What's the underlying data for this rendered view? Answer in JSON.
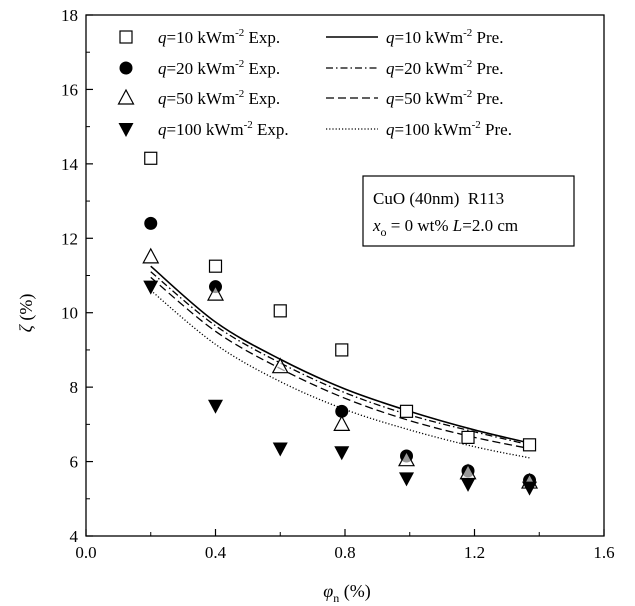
{
  "chart_data": {
    "type": "scatter",
    "xlabel": "φn (%)",
    "ylabel": "ζ (%)",
    "xlim": [
      0.0,
      1.6
    ],
    "ylim": [
      4,
      18
    ],
    "xticks": [
      "0.0",
      "0.4",
      "0.8",
      "1.2",
      "1.6"
    ],
    "yticks": [
      "4",
      "6",
      "8",
      "10",
      "12",
      "14",
      "16",
      "18"
    ],
    "grid": false,
    "legend_position": "top",
    "annotation": {
      "line1": "CuO (40nm)  R113",
      "line2": "xo = 0 wt%  L=2.0 cm"
    },
    "series": [
      {
        "name": "q=10 kWm-2 Exp.",
        "kind": "points",
        "marker": "open-square",
        "x": [
          0.2,
          0.4,
          0.6,
          0.79,
          0.99,
          1.18,
          1.37
        ],
        "y": [
          14.15,
          11.25,
          10.05,
          9.0,
          7.35,
          6.65,
          6.45
        ]
      },
      {
        "name": "q=20 kWm-2 Exp.",
        "kind": "points",
        "marker": "filled-circle",
        "x": [
          0.2,
          0.4,
          0.79,
          0.99,
          1.18,
          1.37
        ],
        "y": [
          12.4,
          10.7,
          7.35,
          6.15,
          5.75,
          5.5
        ]
      },
      {
        "name": "q=50 kWm-2 Exp.",
        "kind": "points",
        "marker": "open-triangle-up",
        "x": [
          0.2,
          0.4,
          0.6,
          0.79,
          0.99,
          1.18,
          1.37
        ],
        "y": [
          11.5,
          10.5,
          8.55,
          7.0,
          6.05,
          5.7,
          5.45
        ]
      },
      {
        "name": "q=100 kWm-2 Exp.",
        "kind": "points",
        "marker": "filled-triangle-down",
        "x": [
          0.2,
          0.4,
          0.6,
          0.79,
          0.99,
          1.18,
          1.37
        ],
        "y": [
          10.7,
          7.5,
          6.35,
          6.25,
          5.55,
          5.4,
          5.3
        ]
      },
      {
        "name": "q=10 kWm-2 Pre.",
        "kind": "line",
        "dash": "solid",
        "x": [
          0.2,
          0.4,
          0.6,
          0.8,
          1.0,
          1.2,
          1.37
        ],
        "y": [
          11.25,
          9.75,
          8.75,
          7.95,
          7.35,
          6.85,
          6.5
        ]
      },
      {
        "name": "q=20 kWm-2 Pre.",
        "kind": "line",
        "dash": "dash-dot",
        "x": [
          0.2,
          0.4,
          0.6,
          0.8,
          1.0,
          1.2,
          1.37
        ],
        "y": [
          11.1,
          9.65,
          8.65,
          7.85,
          7.25,
          6.8,
          6.45
        ]
      },
      {
        "name": "q=50 kWm-2 Pre.",
        "kind": "line",
        "dash": "dashed",
        "x": [
          0.2,
          0.4,
          0.6,
          0.8,
          1.0,
          1.2,
          1.37
        ],
        "y": [
          10.95,
          9.5,
          8.5,
          7.7,
          7.1,
          6.65,
          6.35
        ]
      },
      {
        "name": "q=100 kWm-2 Pre.",
        "kind": "line",
        "dash": "dotted",
        "x": [
          0.2,
          0.4,
          0.6,
          0.8,
          1.0,
          1.2,
          1.37
        ],
        "y": [
          10.6,
          9.15,
          8.15,
          7.4,
          6.85,
          6.4,
          6.1
        ]
      }
    ],
    "legend": [
      {
        "left_prefix": "q",
        "left_text": "=10 kWm",
        "left_exp": "-2",
        "left_suffix": " Exp.",
        "left_marker": "open-square",
        "right_prefix": "q",
        "right_text": "=10 kWm",
        "right_exp": "-2",
        "right_suffix": " Pre.",
        "right_dash": "solid"
      },
      {
        "left_prefix": "q",
        "left_text": "=20 kWm",
        "left_exp": "-2",
        "left_suffix": " Exp.",
        "left_marker": "filled-circle",
        "right_prefix": "q",
        "right_text": "=20 kWm",
        "right_exp": "-2",
        "right_suffix": " Pre.",
        "right_dash": "dash-dot"
      },
      {
        "left_prefix": "q",
        "left_text": "=50 kWm",
        "left_exp": "-2",
        "left_suffix": " Exp.",
        "left_marker": "open-triangle-up",
        "right_prefix": "q",
        "right_text": "=50 kWm",
        "right_exp": "-2",
        "right_suffix": " Pre.",
        "right_dash": "dashed"
      },
      {
        "left_prefix": "q",
        "left_text": "=100 kWm",
        "left_exp": "-2",
        "left_suffix": " Exp.",
        "left_marker": "filled-triangle-down",
        "right_prefix": "q",
        "right_text": "=100 kWm",
        "right_exp": "-2",
        "right_suffix": " Pre.",
        "right_dash": "dotted"
      }
    ]
  }
}
